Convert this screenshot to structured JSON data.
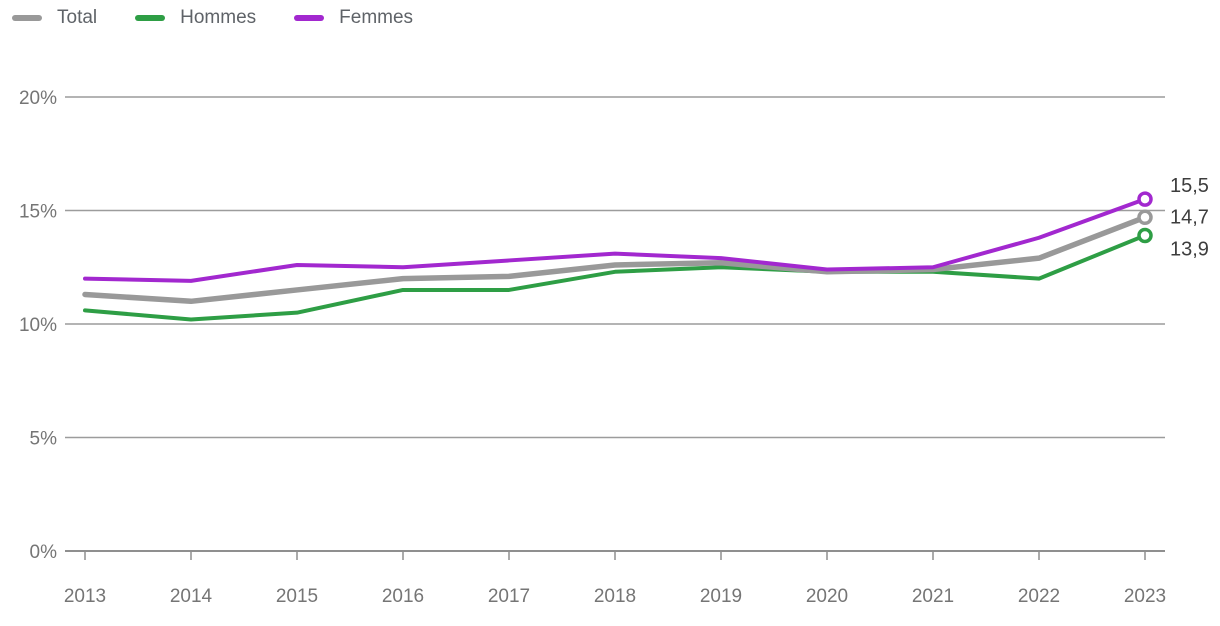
{
  "chart_data": {
    "type": "line",
    "title": "",
    "xlabel": "",
    "ylabel": "",
    "categories": [
      "2013",
      "2014",
      "2015",
      "2016",
      "2017",
      "2018",
      "2019",
      "2020",
      "2021",
      "2022",
      "2023"
    ],
    "series": [
      {
        "name": "Total",
        "color": "#999999",
        "values": [
          11.3,
          11.0,
          11.5,
          12.0,
          12.1,
          12.6,
          12.7,
          12.3,
          12.4,
          12.9,
          14.7
        ],
        "end_label": "14,7"
      },
      {
        "name": "Hommes",
        "color": "#2e9e45",
        "values": [
          10.6,
          10.2,
          10.5,
          11.5,
          11.5,
          12.3,
          12.5,
          12.3,
          12.3,
          12.0,
          13.9
        ],
        "end_label": "13,9"
      },
      {
        "name": "Femmes",
        "color": "#a228cf",
        "values": [
          12.0,
          11.9,
          12.6,
          12.5,
          12.8,
          13.1,
          12.9,
          12.4,
          12.5,
          13.8,
          15.5
        ],
        "end_label": "15,5"
      }
    ],
    "ylim": [
      0,
      20
    ],
    "yticks": [
      {
        "value": 0,
        "label": "0%"
      },
      {
        "value": 5,
        "label": "5%"
      },
      {
        "value": 10,
        "label": "10%"
      },
      {
        "value": 15,
        "label": "15%"
      },
      {
        "value": 20,
        "label": "20%"
      }
    ],
    "legend_position": "top-left",
    "grid": true,
    "colors": {
      "gridline": "#9c9c9c",
      "axis_line": "#8f8f8f",
      "tick_label": "#757575",
      "legend_label": "#5f6368",
      "end_label": "#3d3d3d"
    }
  }
}
